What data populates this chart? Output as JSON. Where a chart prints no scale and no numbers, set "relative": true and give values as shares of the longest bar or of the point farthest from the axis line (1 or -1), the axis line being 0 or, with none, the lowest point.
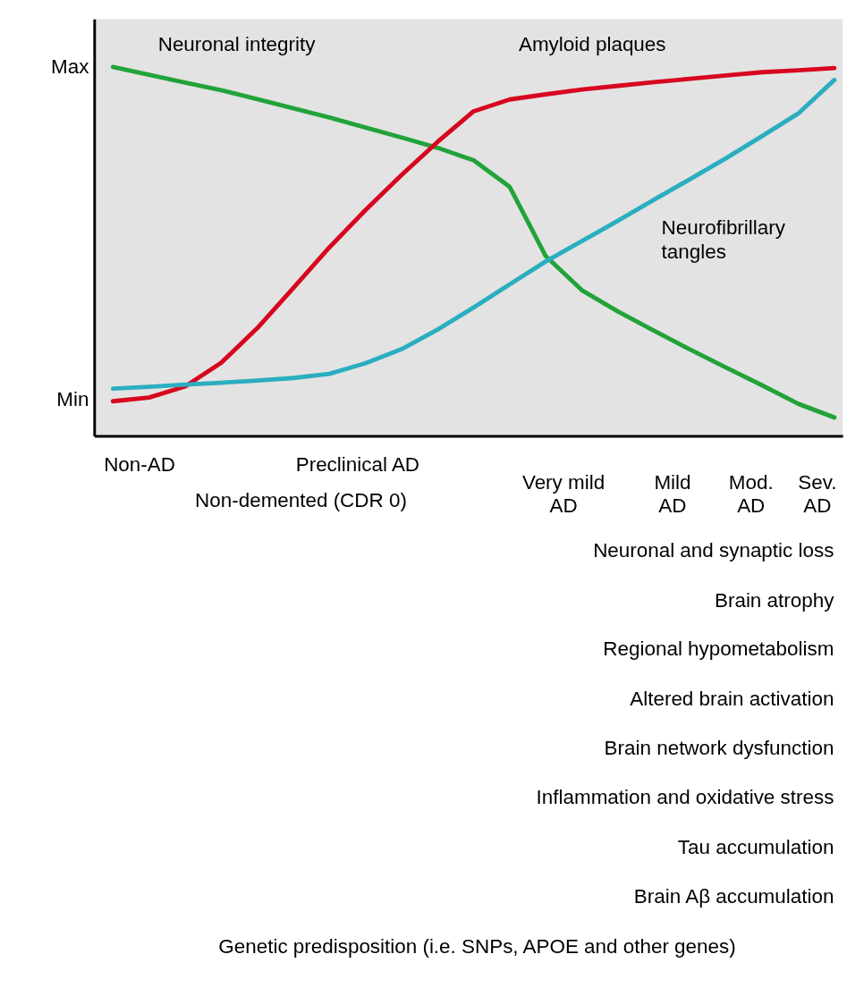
{
  "chart_data": [
    {
      "type": "line",
      "relative": true,
      "categories": [
        null,
        null,
        null,
        null,
        null,
        null,
        null,
        null,
        null,
        null,
        null,
        null,
        null,
        null,
        null,
        null,
        null,
        null,
        null,
        null,
        null
      ],
      "legend": false,
      "marker": "none",
      "line_style": "solid",
      "annotations": [
        "Max",
        "Min"
      ],
      "series": [
        {
          "name": "Neuronal integrity",
          "color": "#22a33a",
          "values": [
            1.0,
            0.979,
            0.958,
            0.937,
            0.913,
            0.888,
            0.863,
            0.836,
            0.809,
            0.781,
            0.747,
            0.675,
            0.487,
            0.395,
            0.337,
            0.285,
            0.234,
            0.185,
            0.137,
            0.087,
            0.05
          ]
        },
        {
          "name": "Amyloid plaques",
          "color": "#d7061e",
          "values": [
            0.094,
            0.104,
            0.134,
            0.198,
            0.292,
            0.401,
            0.511,
            0.612,
            0.707,
            0.797,
            0.88,
            0.912,
            0.926,
            0.939,
            0.949,
            0.959,
            0.968,
            0.977,
            0.986,
            0.991,
            0.997
          ]
        },
        {
          "name": "Neurofibrillary tangles",
          "color": "#2aaec0",
          "values": [
            0.128,
            0.133,
            0.139,
            0.144,
            0.15,
            0.157,
            0.168,
            0.197,
            0.235,
            0.288,
            0.348,
            0.411,
            0.473,
            0.528,
            0.583,
            0.64,
            0.696,
            0.753,
            0.813,
            0.874,
            0.965
          ]
        }
      ]
    },
    {
      "type": "other",
      "annotations": [
        "Non-AD",
        "Preclinical AD",
        "Non-demented (CDR 0)",
        "Very mild AD",
        "Mild AD",
        "Mod. AD",
        "Sev. AD",
        "Neuronal and synaptic loss",
        "Brain atrophy",
        "Regional hypometabolism",
        "Altered brain activation",
        "Brain network dysfunction",
        "Inflammation and oxidative stress",
        "Tau accumulation",
        "Brain Aβ accumulation",
        "Genetic predisposition (i.e. SNPs, APOE and other genes)"
      ]
    }
  ]
}
